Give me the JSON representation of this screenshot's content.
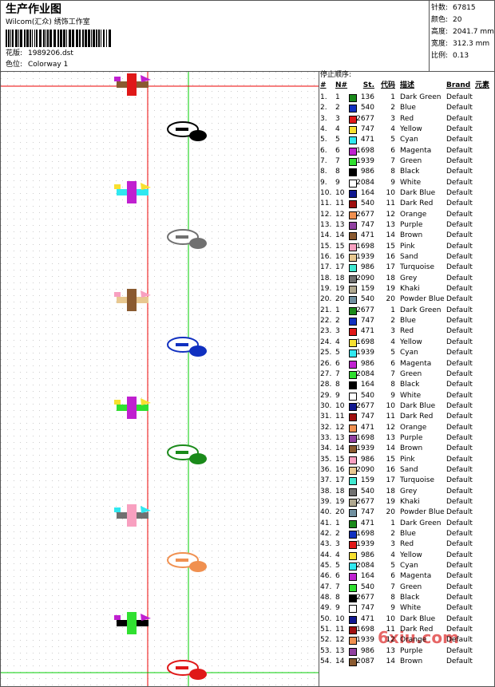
{
  "header": {
    "title": "生产作业图",
    "studio": "Wilcom(汇众) 绣饰工作室",
    "design_label": "花版:",
    "design": "1989206.dst",
    "colorway_label": "色位:",
    "colorway": "Colorway 1"
  },
  "info": [
    {
      "label": "针数:",
      "value": "67815"
    },
    {
      "label": "颜色:",
      "value": "20"
    },
    {
      "label": "高度:",
      "value": "2041.7 mm"
    },
    {
      "label": "宽度:",
      "value": "312.3 mm"
    },
    {
      "label": "比例:",
      "value": "0.13"
    }
  ],
  "table": {
    "title": "停止顺序:",
    "headers": [
      "#",
      "N#",
      "St.",
      "代码",
      "描述",
      "Brand",
      "元素"
    ],
    "rows": [
      [
        "1.",
        "1",
        "#1a8a1a",
        "136",
        "1",
        "Dark Green",
        "Default"
      ],
      [
        "2.",
        "2",
        "#1030c0",
        "540",
        "2",
        "Blue",
        "Default"
      ],
      [
        "3.",
        "3",
        "#e01818",
        "2677",
        "3",
        "Red",
        "Default"
      ],
      [
        "4.",
        "4",
        "#f8e030",
        "747",
        "4",
        "Yellow",
        "Default"
      ],
      [
        "5.",
        "5",
        "#30e8f0",
        "471",
        "5",
        "Cyan",
        "Default"
      ],
      [
        "6.",
        "6",
        "#c020d0",
        "1698",
        "6",
        "Magenta",
        "Default"
      ],
      [
        "7.",
        "7",
        "#30e030",
        "1939",
        "7",
        "Green",
        "Default"
      ],
      [
        "8.",
        "8",
        "#000000",
        "986",
        "8",
        "Black",
        "Default"
      ],
      [
        "9.",
        "9",
        "#ffffff",
        "2084",
        "9",
        "White",
        "Default"
      ],
      [
        "10.",
        "10",
        "#101890",
        "164",
        "10",
        "Dark Blue",
        "Default"
      ],
      [
        "11.",
        "11",
        "#a01010",
        "540",
        "11",
        "Dark Red",
        "Default"
      ],
      [
        "12.",
        "12",
        "#f09050",
        "2677",
        "12",
        "Orange",
        "Default"
      ],
      [
        "13.",
        "13",
        "#9040a0",
        "747",
        "13",
        "Purple",
        "Default"
      ],
      [
        "14.",
        "14",
        "#8a5a30",
        "471",
        "14",
        "Brown",
        "Default"
      ],
      [
        "15.",
        "15",
        "#f8a0c0",
        "1698",
        "15",
        "Pink",
        "Default"
      ],
      [
        "16.",
        "16",
        "#e8c890",
        "1939",
        "16",
        "Sand",
        "Default"
      ],
      [
        "17.",
        "17",
        "#40e8d0",
        "986",
        "17",
        "Turquoise",
        "Default"
      ],
      [
        "18.",
        "18",
        "#707070",
        "2090",
        "18",
        "Grey",
        "Default"
      ],
      [
        "19.",
        "19",
        "#b0a890",
        "159",
        "19",
        "Khaki",
        "Default"
      ],
      [
        "20.",
        "20",
        "#7090a0",
        "540",
        "20",
        "Powder Blue",
        "Default"
      ],
      [
        "21.",
        "1",
        "#1a8a1a",
        "2677",
        "1",
        "Dark Green",
        "Default"
      ],
      [
        "22.",
        "2",
        "#1030c0",
        "747",
        "2",
        "Blue",
        "Default"
      ],
      [
        "23.",
        "3",
        "#e01818",
        "471",
        "3",
        "Red",
        "Default"
      ],
      [
        "24.",
        "4",
        "#f8e030",
        "1698",
        "4",
        "Yellow",
        "Default"
      ],
      [
        "25.",
        "5",
        "#30e8f0",
        "1939",
        "5",
        "Cyan",
        "Default"
      ],
      [
        "26.",
        "6",
        "#c020d0",
        "986",
        "6",
        "Magenta",
        "Default"
      ],
      [
        "27.",
        "7",
        "#30e030",
        "2084",
        "7",
        "Green",
        "Default"
      ],
      [
        "28.",
        "8",
        "#000000",
        "164",
        "8",
        "Black",
        "Default"
      ],
      [
        "29.",
        "9",
        "#ffffff",
        "540",
        "9",
        "White",
        "Default"
      ],
      [
        "30.",
        "10",
        "#101890",
        "2677",
        "10",
        "Dark Blue",
        "Default"
      ],
      [
        "31.",
        "11",
        "#a01010",
        "747",
        "11",
        "Dark Red",
        "Default"
      ],
      [
        "32.",
        "12",
        "#f09050",
        "471",
        "12",
        "Orange",
        "Default"
      ],
      [
        "33.",
        "13",
        "#9040a0",
        "1698",
        "13",
        "Purple",
        "Default"
      ],
      [
        "34.",
        "14",
        "#8a5a30",
        "1939",
        "14",
        "Brown",
        "Default"
      ],
      [
        "35.",
        "15",
        "#f8a0c0",
        "986",
        "15",
        "Pink",
        "Default"
      ],
      [
        "36.",
        "16",
        "#e8c890",
        "2090",
        "16",
        "Sand",
        "Default"
      ],
      [
        "37.",
        "17",
        "#40e8d0",
        "159",
        "17",
        "Turquoise",
        "Default"
      ],
      [
        "38.",
        "18",
        "#707070",
        "540",
        "18",
        "Grey",
        "Default"
      ],
      [
        "39.",
        "19",
        "#b0a890",
        "2677",
        "19",
        "Khaki",
        "Default"
      ],
      [
        "40.",
        "20",
        "#7090a0",
        "747",
        "20",
        "Powder Blue",
        "Default"
      ],
      [
        "41.",
        "1",
        "#1a8a1a",
        "471",
        "1",
        "Dark Green",
        "Default"
      ],
      [
        "42.",
        "2",
        "#1030c0",
        "1698",
        "2",
        "Blue",
        "Default"
      ],
      [
        "43.",
        "3",
        "#e01818",
        "1939",
        "3",
        "Red",
        "Default"
      ],
      [
        "44.",
        "4",
        "#f8e030",
        "986",
        "4",
        "Yellow",
        "Default"
      ],
      [
        "45.",
        "5",
        "#30e8f0",
        "2084",
        "5",
        "Cyan",
        "Default"
      ],
      [
        "46.",
        "6",
        "#c020d0",
        "164",
        "6",
        "Magenta",
        "Default"
      ],
      [
        "47.",
        "7",
        "#30e030",
        "540",
        "7",
        "Green",
        "Default"
      ],
      [
        "48.",
        "8",
        "#000000",
        "2677",
        "8",
        "Black",
        "Default"
      ],
      [
        "49.",
        "9",
        "#ffffff",
        "747",
        "9",
        "White",
        "Default"
      ],
      [
        "50.",
        "10",
        "#101890",
        "471",
        "10",
        "Dark Blue",
        "Default"
      ],
      [
        "51.",
        "11",
        "#a01010",
        "1698",
        "11",
        "Dark Red",
        "Default"
      ],
      [
        "52.",
        "12",
        "#f09050",
        "1939",
        "12",
        "Orange",
        "Default"
      ],
      [
        "53.",
        "13",
        "#9040a0",
        "986",
        "13",
        "Purple",
        "Default"
      ],
      [
        "54.",
        "14",
        "#8a5a30",
        "2087",
        "14",
        "Brown",
        "Default"
      ]
    ]
  },
  "watermark": "6xiu.com"
}
